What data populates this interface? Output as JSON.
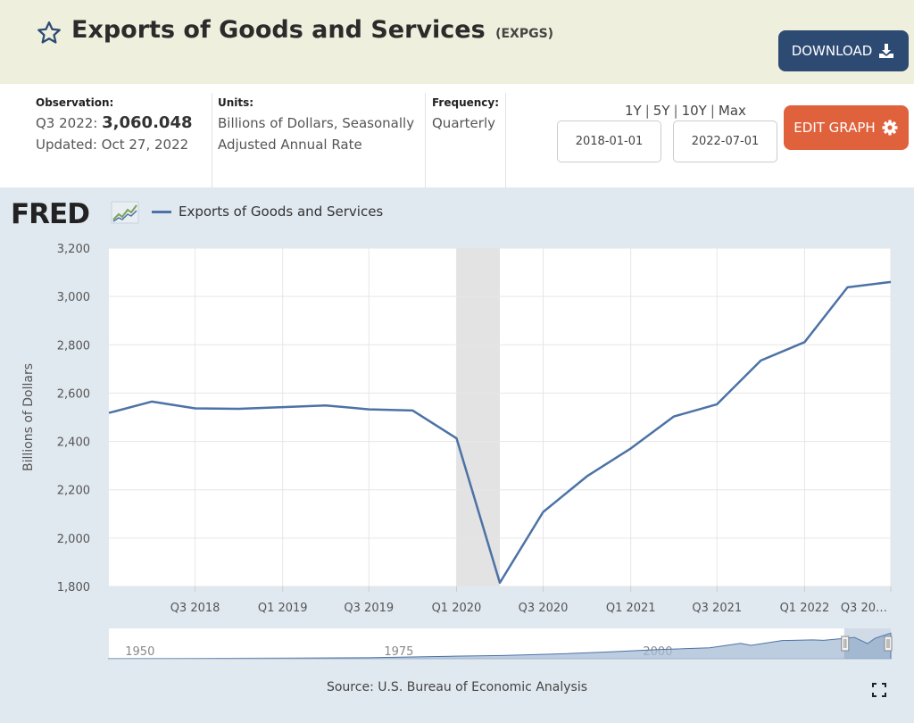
{
  "header": {
    "title": "Exports of Goods and Services",
    "series_id": "(EXPGS)",
    "download_label": "DOWNLOAD"
  },
  "meta": {
    "observation_label": "Observation:",
    "observation_period": "Q3 2022:",
    "observation_value": "3,060.048",
    "updated": "Updated: Oct 27, 2022",
    "units_label": "Units:",
    "units_value": "Billions of Dollars, Seasonally Adjusted Annual Rate",
    "frequency_label": "Frequency:",
    "frequency_value": "Quarterly"
  },
  "controls": {
    "ranges": [
      "1Y",
      "5Y",
      "10Y",
      "Max"
    ],
    "start_date": "2018-01-01",
    "end_date": "2022-07-01",
    "edit_label": "EDIT GRAPH"
  },
  "logo": {
    "text": "FRED"
  },
  "source": "Source: U.S. Bureau of Economic Analysis",
  "colors": {
    "line": "#4c72a6",
    "recession": "#e3e3e3",
    "header_bg": "#efefdd",
    "download_bg": "#2d4a73",
    "edit_bg": "#e0623c"
  },
  "chart_data": {
    "type": "line",
    "ylabel": "Billions of Dollars",
    "ylim": [
      1800,
      3200
    ],
    "yticks": [
      1800,
      2000,
      2200,
      2400,
      2600,
      2800,
      3000,
      3200
    ],
    "ytick_labels": [
      "1,800",
      "2,000",
      "2,200",
      "2,400",
      "2,600",
      "2,800",
      "3,000",
      "3,200"
    ],
    "xlim": [
      "2018-01-01",
      "2022-07-01"
    ],
    "xtick_dates": [
      "2018-07-01",
      "2019-01-01",
      "2019-07-01",
      "2020-01-01",
      "2020-07-01",
      "2021-01-01",
      "2021-07-01",
      "2022-01-01",
      "2022-07-01"
    ],
    "xtick_labels": [
      "Q3 2018",
      "Q1 2019",
      "Q3 2019",
      "Q1 2020",
      "Q3 2020",
      "Q1 2021",
      "Q3 2021",
      "Q1 2022",
      "Q3 20…"
    ],
    "grid": true,
    "legend": "top-left",
    "recession": [
      "2020-01-01",
      "2020-04-01"
    ],
    "series": [
      {
        "name": "Exports of Goods and Services",
        "x": [
          "2018-01-01",
          "2018-04-01",
          "2018-07-01",
          "2018-10-01",
          "2019-01-01",
          "2019-04-01",
          "2019-07-01",
          "2019-10-01",
          "2020-01-01",
          "2020-04-01",
          "2020-07-01",
          "2020-10-01",
          "2021-01-01",
          "2021-04-01",
          "2021-07-01",
          "2021-10-01",
          "2022-01-01",
          "2022-04-01",
          "2022-07-01"
        ],
        "values": [
          2518,
          2565,
          2537,
          2535,
          2542,
          2549,
          2533,
          2528,
          2413,
          1815,
          2108,
          2256,
          2371,
          2503,
          2554,
          2735,
          2811,
          3038,
          3060
        ]
      }
    ],
    "navigator": {
      "tick_labels": [
        "1950",
        "1975",
        "2000"
      ],
      "tick_years": [
        1950,
        1975,
        2000
      ],
      "xlim": [
        1947,
        2022.5
      ],
      "years": [
        1947,
        1955,
        1965,
        1972,
        1980,
        1985,
        1990,
        1995,
        2000,
        2005,
        2008,
        2009,
        2012,
        2015,
        2016,
        2019,
        2020.25,
        2021,
        2022.5
      ],
      "values": [
        20,
        40,
        80,
        120,
        300,
        380,
        550,
        800,
        1100,
        1300,
        1850,
        1600,
        2180,
        2250,
        2200,
        2550,
        1815,
        2450,
        3060
      ],
      "ymax": 3200
    }
  }
}
